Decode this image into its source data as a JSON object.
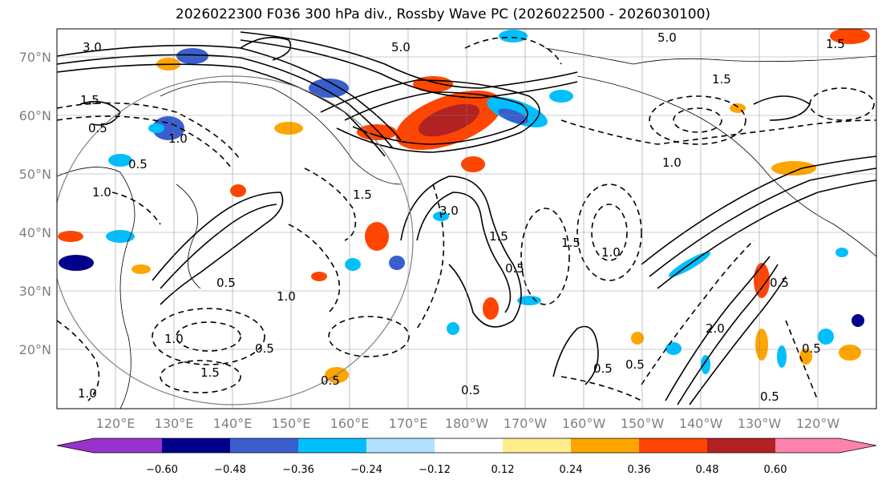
{
  "title": "2026022300 F036 300 hPa div., Rossby Wave PC (2026022500 - 2026030100)",
  "map": {
    "lat_labels": [
      "70°N",
      "60°N",
      "50°N",
      "40°N",
      "30°N",
      "20°N"
    ],
    "lon_labels": [
      "120°E",
      "130°E",
      "140°E",
      "150°E",
      "160°E",
      "170°E",
      "180°W",
      "170°W",
      "160°W",
      "150°W",
      "140°W",
      "130°W",
      "120°W"
    ],
    "contour_labels": [
      "3.0",
      "5.0",
      "5.0",
      "1.5",
      "1.5",
      "0.5",
      "1.0",
      "1.0",
      "3.0",
      "1.5",
      "0.5",
      "1.0",
      "0.5",
      "1.5",
      "1.0",
      "0.5",
      "0.5",
      "1.0",
      "1.5",
      "0.5",
      "1.5",
      "0.5",
      "1.0",
      "0.5",
      "0.5",
      "0.5",
      "1.0",
      "1.5",
      "2.0",
      "0.5",
      "0.5"
    ]
  },
  "colorbar": {
    "ticks": [
      "−0.60",
      "−0.48",
      "−0.36",
      "−0.24",
      "−0.12",
      "0.12",
      "0.24",
      "0.36",
      "0.48",
      "0.60"
    ],
    "colors": [
      "#9932cc",
      "#00008b",
      "#3a5fcd",
      "#00bfff",
      "#b0e2ff",
      "#ffffff",
      "#ffec8b",
      "#ffa500",
      "#ff4500",
      "#b22222",
      "#ff82ab"
    ]
  }
}
